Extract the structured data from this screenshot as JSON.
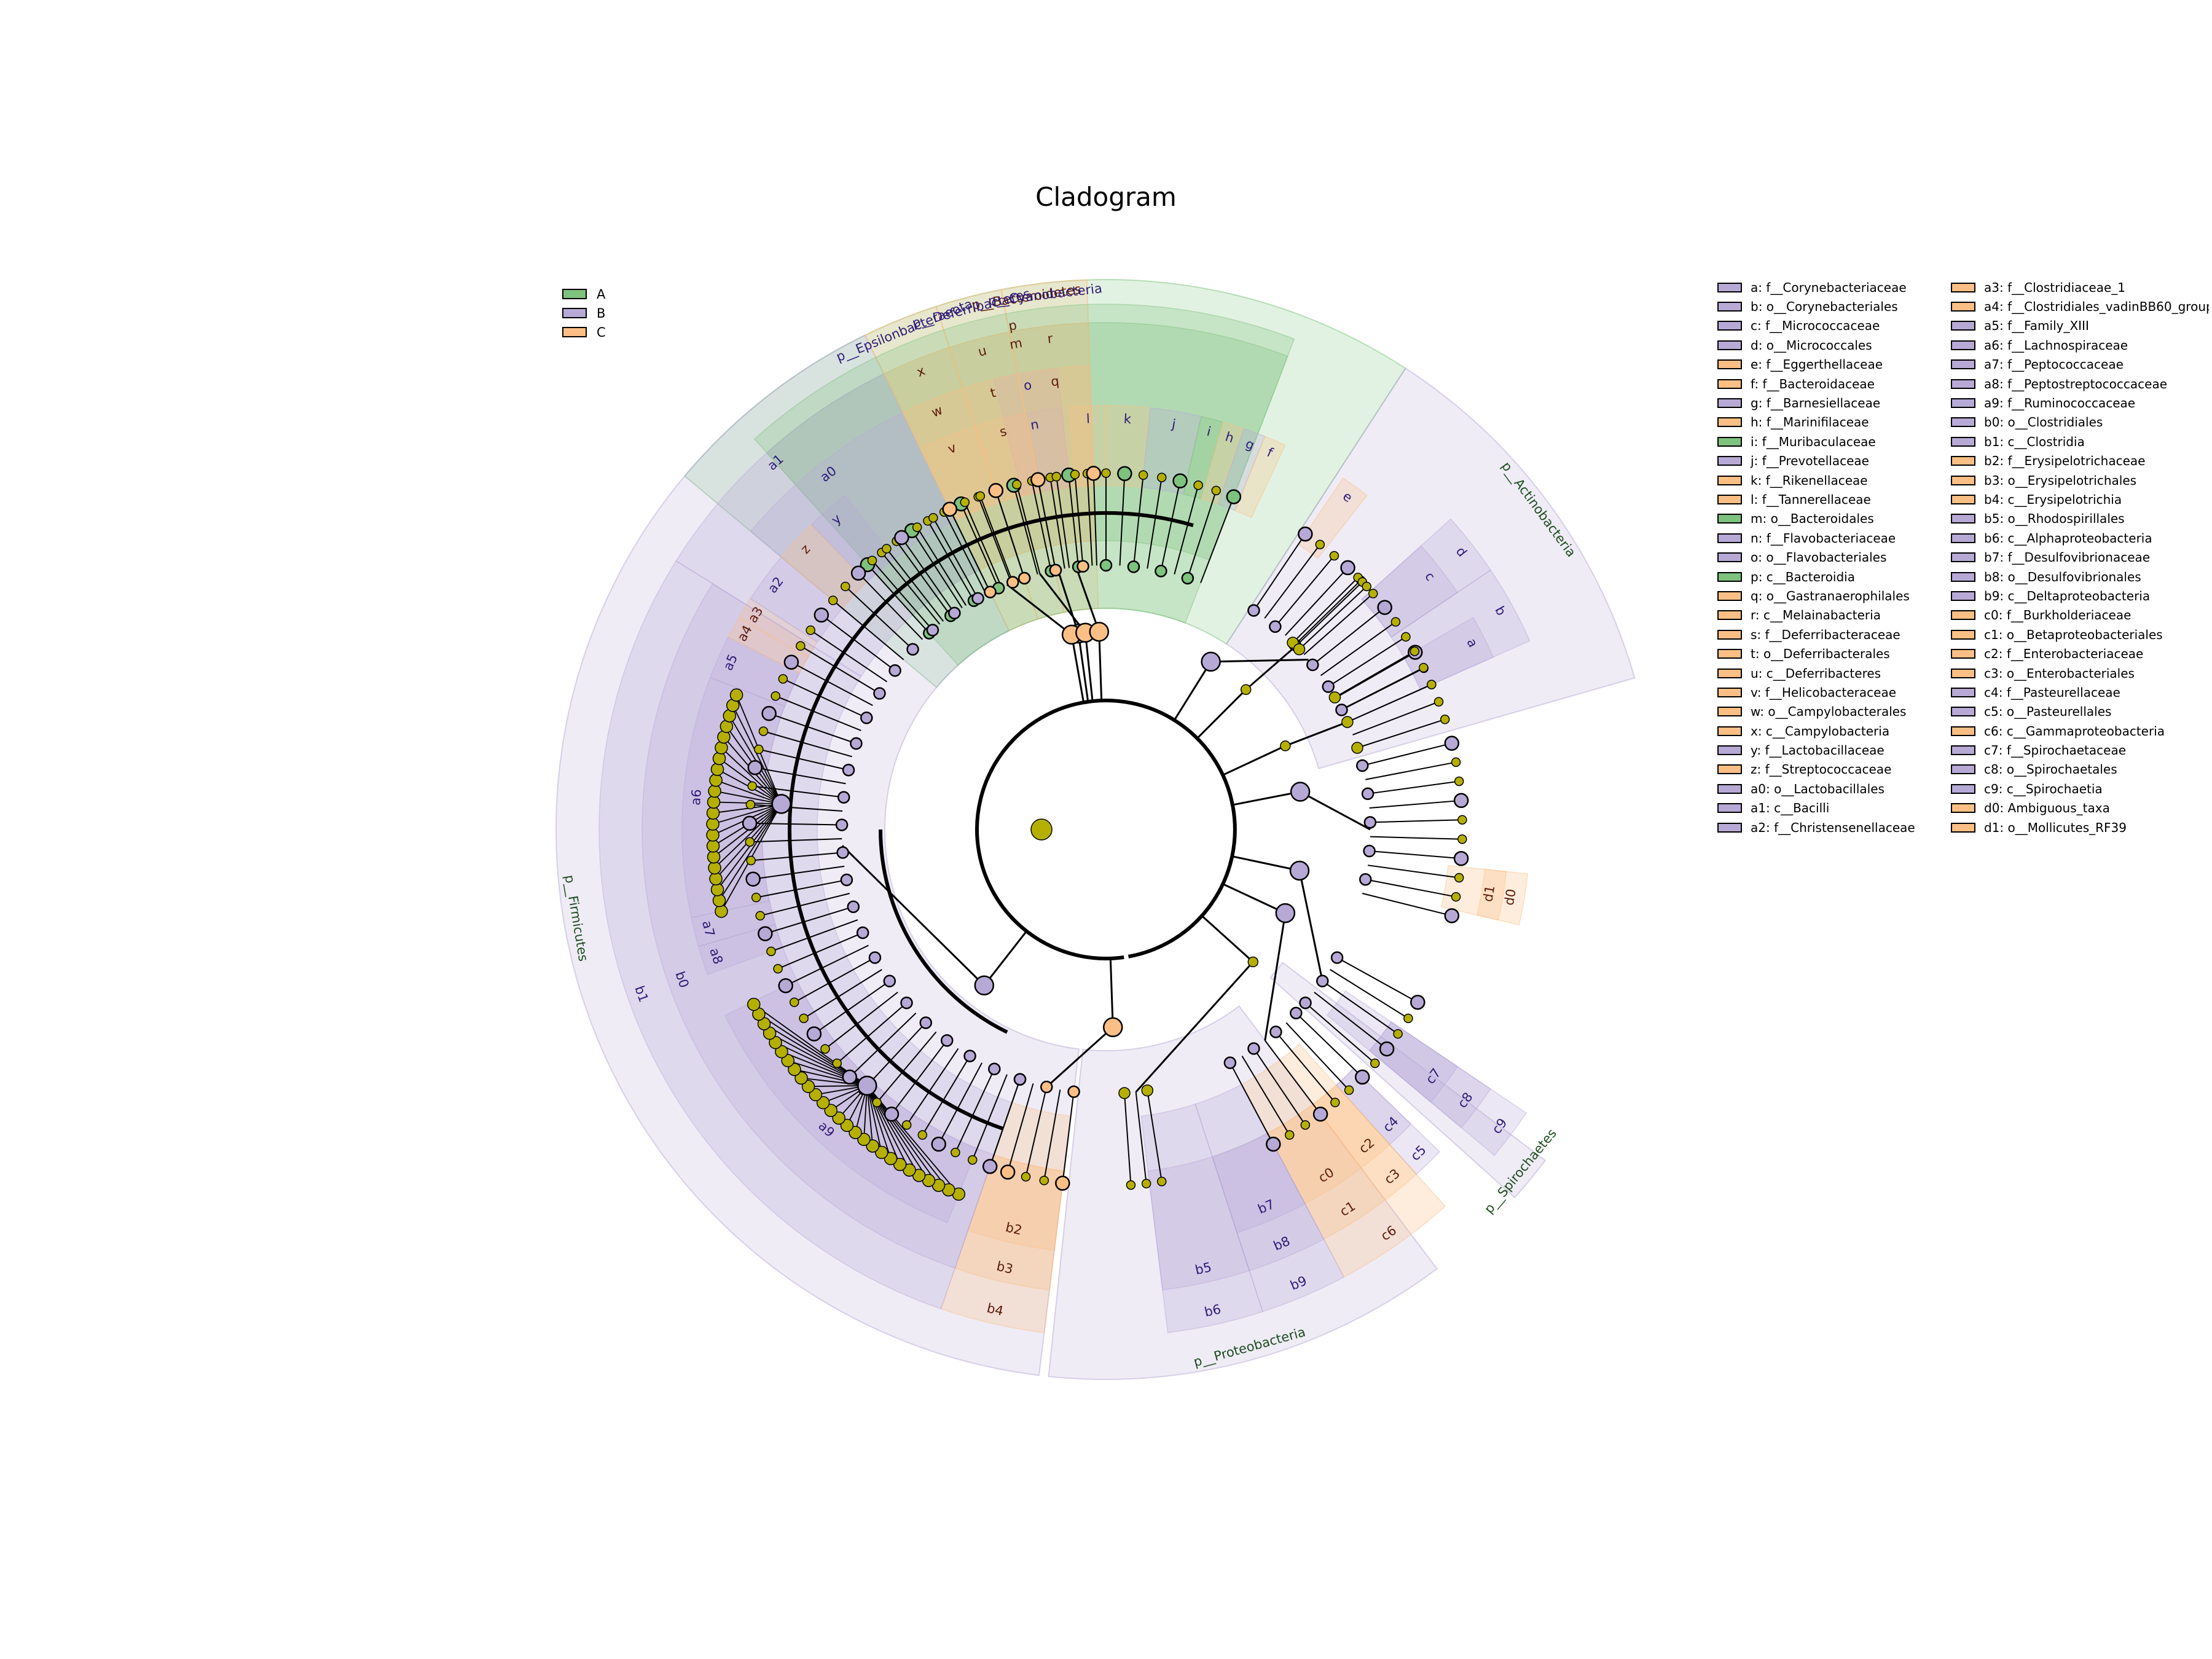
{
  "title": "Cladogram",
  "colors": {
    "A": "#7dc27d",
    "B": "#b7a9d6",
    "C": "#fbbf85",
    "neutral": "#b5b000",
    "nodeStroke": "#000000",
    "labelB": "#2e1a78",
    "labelC": "#5c1a0a",
    "labelPhylum": "#1e4d1e"
  },
  "group_legend": [
    {
      "key": "A",
      "label": "A"
    },
    {
      "key": "B",
      "label": "B"
    },
    {
      "key": "C",
      "label": "C"
    }
  ],
  "abbr_legend": [
    {
      "label": "a: f__Corynebacteriaceae",
      "g": "B"
    },
    {
      "label": "b: o__Corynebacteriales",
      "g": "B"
    },
    {
      "label": "c: f__Micrococcaceae",
      "g": "B"
    },
    {
      "label": "d: o__Micrococcales",
      "g": "B"
    },
    {
      "label": "e: f__Eggerthellaceae",
      "g": "C"
    },
    {
      "label": "f: f__Bacteroidaceae",
      "g": "C"
    },
    {
      "label": "g: f__Barnesiellaceae",
      "g": "B"
    },
    {
      "label": "h: f__Marinifilaceae",
      "g": "C"
    },
    {
      "label": "i: f__Muribaculaceae",
      "g": "A"
    },
    {
      "label": "j: f__Prevotellaceae",
      "g": "B"
    },
    {
      "label": "k: f__Rikenellaceae",
      "g": "C"
    },
    {
      "label": "l: f__Tannerellaceae",
      "g": "C"
    },
    {
      "label": "m: o__Bacteroidales",
      "g": "A"
    },
    {
      "label": "n: f__Flavobacteriaceae",
      "g": "B"
    },
    {
      "label": "o: o__Flavobacteriales",
      "g": "B"
    },
    {
      "label": "p: c__Bacteroidia",
      "g": "A"
    },
    {
      "label": "q: o__Gastranaerophilales",
      "g": "C"
    },
    {
      "label": "r: c__Melainabacteria",
      "g": "C"
    },
    {
      "label": "s: f__Deferribacteraceae",
      "g": "C"
    },
    {
      "label": "t: o__Deferribacterales",
      "g": "C"
    },
    {
      "label": "u: c__Deferribacteres",
      "g": "C"
    },
    {
      "label": "v: f__Helicobacteraceae",
      "g": "C"
    },
    {
      "label": "w: o__Campylobacterales",
      "g": "C"
    },
    {
      "label": "x: c__Campylobacteria",
      "g": "C"
    },
    {
      "label": "y: f__Lactobacillaceae",
      "g": "B"
    },
    {
      "label": "z: f__Streptococcaceae",
      "g": "C"
    },
    {
      "label": "a0: o__Lactobacillales",
      "g": "B"
    },
    {
      "label": "a1: c__Bacilli",
      "g": "B"
    },
    {
      "label": "a2: f__Christensenellaceae",
      "g": "B"
    },
    {
      "label": "a3: f__Clostridiaceae_1",
      "g": "C"
    },
    {
      "label": "a4: f__Clostridiales_vadinBB60_group",
      "g": "C"
    },
    {
      "label": "a5: f__Family_XIII",
      "g": "B"
    },
    {
      "label": "a6: f__Lachnospiraceae",
      "g": "B"
    },
    {
      "label": "a7: f__Peptococcaceae",
      "g": "B"
    },
    {
      "label": "a8: f__Peptostreptococcaceae",
      "g": "B"
    },
    {
      "label": "a9: f__Ruminococcaceae",
      "g": "B"
    },
    {
      "label": "b0: o__Clostridiales",
      "g": "B"
    },
    {
      "label": "b1: c__Clostridia",
      "g": "B"
    },
    {
      "label": "b2: f__Erysipelotrichaceae",
      "g": "C"
    },
    {
      "label": "b3: o__Erysipelotrichales",
      "g": "C"
    },
    {
      "label": "b4: c__Erysipelotrichia",
      "g": "C"
    },
    {
      "label": "b5: o__Rhodospirillales",
      "g": "B"
    },
    {
      "label": "b6: c__Alphaproteobacteria",
      "g": "B"
    },
    {
      "label": "b7: f__Desulfovibrionaceae",
      "g": "B"
    },
    {
      "label": "b8: o__Desulfovibrionales",
      "g": "B"
    },
    {
      "label": "b9: c__Deltaproteobacteria",
      "g": "B"
    },
    {
      "label": "c0: f__Burkholderiaceae",
      "g": "C"
    },
    {
      "label": "c1: o__Betaproteobacteriales",
      "g": "C"
    },
    {
      "label": "c2: f__Enterobacteriaceae",
      "g": "C"
    },
    {
      "label": "c3: o__Enterobacteriales",
      "g": "C"
    },
    {
      "label": "c4: f__Pasteurellaceae",
      "g": "B"
    },
    {
      "label": "c5: o__Pasteurellales",
      "g": "B"
    },
    {
      "label": "c6: c__Gammaproteobacteria",
      "g": "C"
    },
    {
      "label": "c7: f__Spirochaetaceae",
      "g": "B"
    },
    {
      "label": "c8: o__Spirochaetales",
      "g": "B"
    },
    {
      "label": "c9: c__Spirochaetia",
      "g": "B"
    },
    {
      "label": "d0: Ambiguous_taxa",
      "g": "C"
    },
    {
      "label": "d1: o__Mollicutes_RF39",
      "g": "C"
    }
  ],
  "cladogram": {
    "phyla": [
      {
        "label": "p__Bacteroidetes",
        "g": "A",
        "a1": -50,
        "a2": 33,
        "tone": "C"
      },
      {
        "label": "p__Actinobacteria",
        "g": "B",
        "a1": 33,
        "a2": 74,
        "tone": "B"
      },
      {
        "label": "p__Spirochaetes",
        "g": "B",
        "a1": 127,
        "a2": 132,
        "tone": "B"
      },
      {
        "label": "p__Proteobacteria",
        "g": "B",
        "a1": 143,
        "a2": 186,
        "tone": "B"
      },
      {
        "label": "p__Firmicutes",
        "g": "B",
        "a1": 187,
        "a2": 334,
        "tone": "B"
      },
      {
        "label": "p__Epsilonbacteraeota",
        "g": "C",
        "a1": 334,
        "a2": 342,
        "tone": "B"
      },
      {
        "label": "p__Deferribacteres",
        "g": "C",
        "a1": 342,
        "a2": 349,
        "tone": "B"
      },
      {
        "label": "p__Cyanobacteria",
        "g": "C",
        "a1": 349,
        "a2": 358,
        "tone": "B"
      }
    ],
    "clades": [
      {
        "label": "p",
        "g": "A",
        "lvl": 1,
        "a1": -42,
        "a2": 21,
        "tone": "C"
      },
      {
        "label": "m",
        "g": "A",
        "lvl": 2,
        "a1": -42,
        "a2": 21,
        "tone": "C"
      },
      {
        "label": "o",
        "g": "B",
        "lvl": 3,
        "a1": -14,
        "a2": -6,
        "tone": "B"
      },
      {
        "label": "n",
        "g": "B",
        "lvl": 4,
        "a1": -14,
        "a2": -6,
        "tone": "B"
      },
      {
        "label": "l",
        "g": "C",
        "lvl": 4,
        "a1": -5,
        "a2": 0,
        "tone": "B"
      },
      {
        "label": "k",
        "g": "C",
        "lvl": 4,
        "a1": 0,
        "a2": 6,
        "tone": "B"
      },
      {
        "label": "j",
        "g": "B",
        "lvl": 4,
        "a1": 6,
        "a2": 13,
        "tone": "B"
      },
      {
        "label": "i",
        "g": "A",
        "lvl": 4,
        "a1": 13,
        "a2": 16,
        "tone": "B"
      },
      {
        "label": "h",
        "g": "C",
        "lvl": 4,
        "a1": 16,
        "a2": 19,
        "tone": "B"
      },
      {
        "label": "g",
        "g": "B",
        "lvl": 4,
        "a1": 19,
        "a2": 22,
        "tone": "B"
      },
      {
        "label": "f",
        "g": "C",
        "lvl": 4,
        "a1": 22,
        "a2": 25,
        "tone": "B"
      },
      {
        "label": "e",
        "g": "C",
        "lvl": 4,
        "a1": 34,
        "a2": 38,
        "tone": "B"
      },
      {
        "label": "d",
        "g": "B",
        "lvl": 3,
        "a1": 48,
        "a2": 56,
        "tone": "B"
      },
      {
        "label": "c",
        "g": "B",
        "lvl": 4,
        "a1": 48,
        "a2": 56,
        "tone": "B"
      },
      {
        "label": "b",
        "g": "B",
        "lvl": 3,
        "a1": 56,
        "a2": 66,
        "tone": "B"
      },
      {
        "label": "a",
        "g": "B",
        "lvl": 4,
        "a1": 60,
        "a2": 66,
        "tone": "B"
      },
      {
        "label": "d0",
        "g": "C",
        "lvl": 4,
        "a1": 96,
        "a2": 103,
        "tone": "C"
      },
      {
        "label": "d1",
        "g": "C",
        "lvl": 5,
        "a1": 96,
        "a2": 103,
        "tone": "C"
      },
      {
        "label": "c9",
        "g": "B",
        "lvl": 2,
        "a1": 124,
        "a2": 130,
        "tone": "B"
      },
      {
        "label": "c8",
        "g": "B",
        "lvl": 3,
        "a1": 124,
        "a2": 130,
        "tone": "B"
      },
      {
        "label": "c7",
        "g": "B",
        "lvl": 4,
        "a1": 124,
        "a2": 130,
        "tone": "B"
      },
      {
        "label": "c6",
        "g": "C",
        "lvl": 2,
        "a1": 138,
        "a2": 152,
        "tone": "C"
      },
      {
        "label": "c5",
        "g": "B",
        "lvl": 3,
        "a1": 134,
        "a2": 138,
        "tone": "B"
      },
      {
        "label": "c4",
        "g": "B",
        "lvl": 4,
        "a1": 134,
        "a2": 138,
        "tone": "B"
      },
      {
        "label": "c3",
        "g": "C",
        "lvl": 3,
        "a1": 138,
        "a2": 143,
        "tone": "C"
      },
      {
        "label": "c2",
        "g": "C",
        "lvl": 4,
        "a1": 138,
        "a2": 143,
        "tone": "C"
      },
      {
        "label": "c1",
        "g": "C",
        "lvl": 3,
        "a1": 143,
        "a2": 152,
        "tone": "C"
      },
      {
        "label": "c0",
        "g": "C",
        "lvl": 4,
        "a1": 143,
        "a2": 152,
        "tone": "C"
      },
      {
        "label": "b9",
        "g": "B",
        "lvl": 2,
        "a1": 152,
        "a2": 162,
        "tone": "B"
      },
      {
        "label": "b8",
        "g": "B",
        "lvl": 3,
        "a1": 152,
        "a2": 162,
        "tone": "B"
      },
      {
        "label": "b7",
        "g": "B",
        "lvl": 4,
        "a1": 152,
        "a2": 162,
        "tone": "B"
      },
      {
        "label": "b6",
        "g": "B",
        "lvl": 2,
        "a1": 162,
        "a2": 173,
        "tone": "B"
      },
      {
        "label": "b5",
        "g": "B",
        "lvl": 3,
        "a1": 162,
        "a2": 173,
        "tone": "B"
      },
      {
        "label": "b4",
        "g": "C",
        "lvl": 2,
        "a1": 187,
        "a2": 199,
        "tone": "C"
      },
      {
        "label": "b3",
        "g": "C",
        "lvl": 3,
        "a1": 187,
        "a2": 199,
        "tone": "C"
      },
      {
        "label": "b2",
        "g": "C",
        "lvl": 4,
        "a1": 187,
        "a2": 199,
        "tone": "C"
      },
      {
        "label": "b1",
        "g": "B",
        "lvl": 2,
        "a1": 199,
        "a2": 302,
        "tone": "B"
      },
      {
        "label": "b0",
        "g": "B",
        "lvl": 3,
        "a1": 199,
        "a2": 302,
        "tone": "B"
      },
      {
        "label": "a9",
        "g": "B",
        "lvl": 4,
        "a1": 202,
        "a2": 244,
        "tone": "B"
      },
      {
        "label": "a8",
        "g": "B",
        "lvl": 4,
        "a1": 250,
        "a2": 254,
        "tone": "B"
      },
      {
        "label": "a7",
        "g": "B",
        "lvl": 4,
        "a1": 254,
        "a2": 258,
        "tone": "B"
      },
      {
        "label": "a6",
        "g": "B",
        "lvl": 4,
        "a1": 258,
        "a2": 291,
        "tone": "B"
      },
      {
        "label": "a5",
        "g": "B",
        "lvl": 4,
        "a1": 291,
        "a2": 297,
        "tone": "B"
      },
      {
        "label": "a4",
        "g": "C",
        "lvl": 4,
        "a1": 297,
        "a2": 300,
        "tone": "C"
      },
      {
        "label": "a3",
        "g": "C",
        "lvl": 4,
        "a1": 300,
        "a2": 303,
        "tone": "C"
      },
      {
        "label": "a2",
        "g": "B",
        "lvl": 4,
        "a1": 303,
        "a2": 310,
        "tone": "B"
      },
      {
        "label": "a1",
        "g": "B",
        "lvl": 2,
        "a1": 302,
        "a2": 334,
        "tone": "B"
      },
      {
        "label": "a0",
        "g": "B",
        "lvl": 3,
        "a1": 310,
        "a2": 334,
        "tone": "B"
      },
      {
        "label": "z",
        "g": "C",
        "lvl": 4,
        "a1": 310,
        "a2": 316,
        "tone": "C"
      },
      {
        "label": "y",
        "g": "B",
        "lvl": 4,
        "a1": 316,
        "a2": 322,
        "tone": "B"
      },
      {
        "label": "x",
        "g": "C",
        "lvl": 2,
        "a1": 334,
        "a2": 342,
        "tone": "C"
      },
      {
        "label": "w",
        "g": "C",
        "lvl": 3,
        "a1": 334,
        "a2": 342,
        "tone": "C"
      },
      {
        "label": "v",
        "g": "C",
        "lvl": 4,
        "a1": 334,
        "a2": 342,
        "tone": "C"
      },
      {
        "label": "u",
        "g": "C",
        "lvl": 2,
        "a1": 342,
        "a2": 349,
        "tone": "C"
      },
      {
        "label": "t",
        "g": "C",
        "lvl": 3,
        "a1": 342,
        "a2": 349,
        "tone": "C"
      },
      {
        "label": "s",
        "g": "C",
        "lvl": 4,
        "a1": 342,
        "a2": 349,
        "tone": "C"
      },
      {
        "label": "r",
        "g": "C",
        "lvl": 2,
        "a1": 349,
        "a2": 358,
        "tone": "C"
      },
      {
        "label": "q",
        "g": "C",
        "lvl": 3,
        "a1": 349,
        "a2": 358,
        "tone": "C"
      }
    ],
    "phylum_nodes": [
      {
        "a": -8,
        "g": "A",
        "fan": [
          -42,
          21
        ]
      },
      {
        "a": 32,
        "g": "B",
        "fan": [
          34,
          66
        ]
      },
      {
        "a": 45,
        "g": "N",
        "fan": [
          45,
          47
        ]
      },
      {
        "a": 65,
        "g": "N",
        "fan": [
          60,
          72
        ]
      },
      {
        "a": 79,
        "g": "B",
        "fan": [
          76,
          104
        ]
      },
      {
        "a": 102,
        "g": "B",
        "fan": [
          119,
          131
        ]
      },
      {
        "a": 115,
        "g": "B",
        "fan": [
          134,
          152
        ]
      },
      {
        "a": 132,
        "g": "N",
        "fan": [
          171,
          176
        ]
      },
      {
        "a": 178,
        "g": "C",
        "fan": [
          187,
          199
        ]
      },
      {
        "a": 218,
        "g": "B",
        "fan": [
          199,
          334
        ]
      },
      {
        "a": 350,
        "g": "C",
        "fan": [
          334,
          342
        ]
      },
      {
        "a": 354,
        "g": "C",
        "fan": [
          342,
          349
        ]
      },
      {
        "a": 358,
        "g": "C",
        "fan": [
          349,
          358
        ]
      }
    ]
  }
}
